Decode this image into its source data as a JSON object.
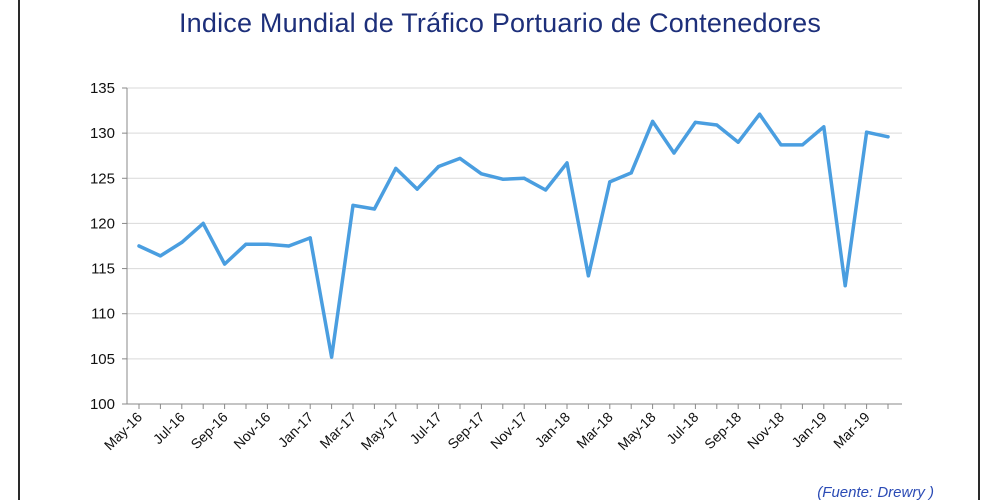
{
  "title": "Indice Mundial de Tráfico Portuario de Contenedores",
  "source": "(Fuente: Drewry )",
  "colors": {
    "line": "#4a9ee0",
    "title": "#1d2f7a",
    "source": "#2b4bb5",
    "grid": "#d9d9d9"
  },
  "chart_data": {
    "type": "line",
    "title": "Indice Mundial de Tráfico Portuario de Contenedores",
    "xlabel": "",
    "ylabel": "",
    "ylim": [
      100,
      135
    ],
    "yticks": [
      100,
      105,
      110,
      115,
      120,
      125,
      130,
      135
    ],
    "grid": true,
    "legend": "none",
    "tick_labels": [
      "May-16",
      "Jul-16",
      "Sep-16",
      "Nov-16",
      "Jan-17",
      "Mar-17",
      "May-17",
      "Jul-17",
      "Sep-17",
      "Nov-17",
      "Jan-18",
      "Mar-18",
      "May-18",
      "Jul-18",
      "Sep-18",
      "Nov-18",
      "Jan-19",
      "Mar-19"
    ],
    "x": [
      "May-16",
      "Jun-16",
      "Jul-16",
      "Aug-16",
      "Sep-16",
      "Oct-16",
      "Nov-16",
      "Dec-16",
      "Jan-17",
      "Feb-17",
      "Mar-17",
      "Apr-17",
      "May-17",
      "Jun-17",
      "Jul-17",
      "Aug-17",
      "Sep-17",
      "Oct-17",
      "Nov-17",
      "Dec-17",
      "Jan-18",
      "Feb-18",
      "Mar-18",
      "Apr-18",
      "May-18",
      "Jun-18",
      "Jul-18",
      "Aug-18",
      "Sep-18",
      "Oct-18",
      "Nov-18",
      "Dec-18",
      "Jan-19",
      "Feb-19",
      "Mar-19",
      "Apr-19"
    ],
    "series": [
      {
        "values": [
          117.5,
          116.4,
          117.9,
          120.0,
          115.5,
          117.7,
          117.7,
          117.5,
          118.4,
          105.2,
          122.0,
          121.6,
          126.1,
          123.8,
          126.3,
          127.2,
          125.5,
          124.9,
          125.0,
          123.7,
          126.7,
          114.2,
          124.6,
          125.6,
          131.3,
          127.8,
          131.2,
          130.9,
          129.0,
          132.1,
          128.7,
          128.7,
          130.7,
          113.1,
          130.1,
          129.6
        ]
      }
    ]
  }
}
